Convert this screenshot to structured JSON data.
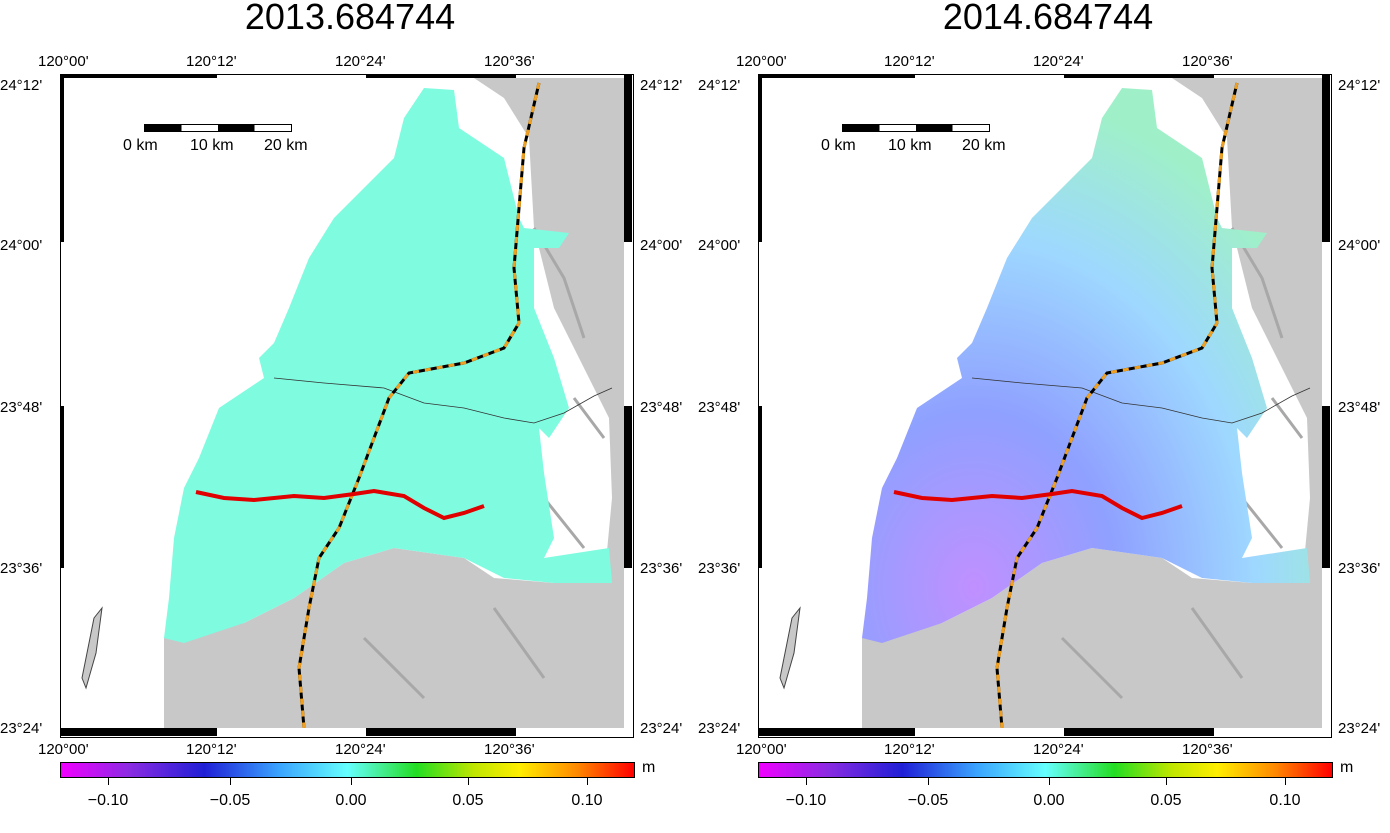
{
  "panels": [
    {
      "title": "2013.684744",
      "lon_top": [
        "120°00'",
        "120°12'",
        "120°24'",
        "120°36'"
      ],
      "lon_bottom": [
        "120°00'",
        "120°12'",
        "120°24'",
        "120°36'"
      ],
      "lat_left": [
        "24°12'",
        "24°00'",
        "23°48'",
        "23°36'",
        "23°24'"
      ],
      "lat_right": [
        "24°12'",
        "24°00'",
        "23°48'",
        "23°36'",
        "23°24'"
      ],
      "scale_labels": [
        "0 km",
        "10 km",
        "20 km"
      ],
      "colorbar_ticks": [
        "−0.10",
        "−0.05",
        "0.00",
        "0.05",
        "0.10"
      ],
      "unit": "m",
      "land_fill": "#7ffbe0"
    },
    {
      "title": "2014.684744",
      "lon_top": [
        "120°00'",
        "120°12'",
        "120°24'",
        "120°36'"
      ],
      "lon_bottom": [
        "120°00'",
        "120°12'",
        "120°24'",
        "120°36'"
      ],
      "lat_left": [
        "24°12'",
        "24°00'",
        "23°48'",
        "23°36'",
        "23°24'"
      ],
      "lat_right": [
        "24°12'",
        "24°00'",
        "23°48'",
        "23°36'",
        "23°24'"
      ],
      "scale_labels": [
        "0 km",
        "10 km",
        "20 km"
      ],
      "colorbar_ticks": [
        "−0.10",
        "−0.05",
        "0.00",
        "0.05",
        "0.10"
      ],
      "unit": "m",
      "land_fill": "#9ec8ff"
    }
  ],
  "colors": {
    "mountain": "#c8c8c8",
    "fault_line": "#000000",
    "fault_dash": "#f0a020",
    "profile_line": "#e00000"
  }
}
